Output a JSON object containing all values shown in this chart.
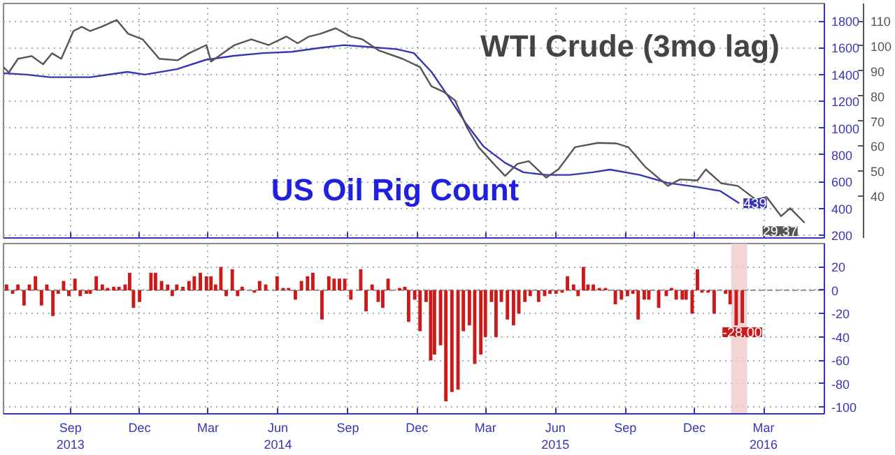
{
  "chart_data": [
    {
      "type": "line",
      "xlim": [
        "2013-06-05",
        "2016-05-20"
      ],
      "ylim": [
        179,
        1931
      ],
      "yticks": [
        200,
        400,
        600,
        800,
        1000,
        1200,
        1400,
        1600,
        1800
      ],
      "y2lim": [
        23.3,
        117
      ],
      "y2ticks": [
        40,
        50,
        60,
        70,
        80,
        90,
        100,
        110
      ],
      "xticks": [
        {
          "value": "2013-09-01",
          "label": null
        },
        {
          "value": "2013-12-01",
          "label": null
        },
        {
          "value": "2014-03-01",
          "label": null
        },
        {
          "value": "2014-06-01",
          "label": null
        },
        {
          "value": "2014-09-01",
          "label": null
        },
        {
          "value": "2014-12-01",
          "label": null
        },
        {
          "value": "2015-03-01",
          "label": null
        },
        {
          "value": "2015-06-01",
          "label": null
        },
        {
          "value": "2015-09-01",
          "label": null
        },
        {
          "value": "2015-12-01",
          "label": null
        },
        {
          "value": "2016-03-01",
          "label": null
        }
      ],
      "tick_labels": "y",
      "grid": true,
      "series": [
        {
          "name": "US Oil Rig Count",
          "color": "#3535b5",
          "x": [
            "2013-06-05",
            "2013-07-05",
            "2013-08-05",
            "2013-09-27",
            "2013-11-15",
            "2013-12-08",
            "2014-01-19",
            "2014-02-26",
            "2014-04-04",
            "2014-05-12",
            "2014-06-19",
            "2014-07-27",
            "2014-08-27",
            "2014-09-19",
            "2014-11-04",
            "2014-11-27",
            "2014-12-20",
            "2015-01-12",
            "2015-02-04",
            "2015-02-27",
            "2015-03-27",
            "2015-04-20",
            "2015-05-20",
            "2015-06-20",
            "2015-07-20",
            "2015-08-12",
            "2015-09-20",
            "2015-10-27",
            "2015-12-04",
            "2016-01-04",
            "2016-01-29"
          ],
          "values": [
            1410,
            1400,
            1380,
            1380,
            1420,
            1400,
            1440,
            1510,
            1540,
            1560,
            1570,
            1600,
            1620,
            1610,
            1590,
            1560,
            1420,
            1230,
            1030,
            860,
            740,
            670,
            650,
            650,
            670,
            690,
            650,
            590,
            560,
            530,
            439
          ],
          "value_labels": [
            null,
            null,
            null,
            null,
            null,
            null,
            null,
            null,
            null,
            null,
            null,
            null,
            null,
            null,
            null,
            null,
            null,
            null,
            null,
            null,
            null,
            null,
            null,
            null,
            null,
            null,
            null,
            null,
            null,
            null,
            "439"
          ]
        },
        {
          "name": "WTI Crude (3mo lag)",
          "color": "#555555",
          "axis": "y2",
          "x": [
            "2013-06-05",
            "2013-06-12",
            "2013-06-24",
            "2013-07-12",
            "2013-07-27",
            "2013-08-08",
            "2013-08-20",
            "2013-09-05",
            "2013-09-16",
            "2013-09-27",
            "2013-10-12",
            "2013-11-01",
            "2013-11-16",
            "2013-12-05",
            "2013-12-27",
            "2014-01-20",
            "2014-02-04",
            "2014-02-27",
            "2014-03-05",
            "2014-04-05",
            "2014-04-27",
            "2014-05-20",
            "2014-06-12",
            "2014-06-27",
            "2014-07-12",
            "2014-07-27",
            "2014-08-16",
            "2014-09-05",
            "2014-09-20",
            "2014-10-12",
            "2014-11-12",
            "2014-12-05",
            "2014-12-20",
            "2015-01-05",
            "2015-01-20",
            "2015-02-05",
            "2015-02-20",
            "2015-03-12",
            "2015-03-27",
            "2015-04-12",
            "2015-04-27",
            "2015-05-20",
            "2015-06-05",
            "2015-06-27",
            "2015-07-27",
            "2015-08-20",
            "2015-09-05",
            "2015-09-27",
            "2015-10-27",
            "2015-11-12",
            "2015-12-05",
            "2015-12-16",
            "2016-01-05",
            "2016-01-27",
            "2016-02-20",
            "2016-03-05",
            "2016-03-24",
            "2016-04-05",
            "2016-04-24"
          ],
          "values": [
            91.6,
            89.4,
            94.9,
            96.0,
            92.7,
            97.1,
            94.9,
            106.0,
            107.7,
            106.0,
            107.7,
            110.4,
            104.9,
            102.7,
            94.9,
            94.3,
            97.1,
            100.4,
            93.8,
            100.4,
            102.7,
            100.4,
            103.8,
            101.1,
            103.8,
            104.9,
            107.1,
            103.8,
            102.7,
            98.2,
            94.9,
            91.6,
            83.9,
            81.7,
            78.3,
            67.3,
            59.6,
            52.9,
            48.1,
            52.9,
            54.0,
            47.4,
            50.7,
            59.6,
            61.3,
            61.1,
            59.6,
            51.8,
            44.1,
            46.7,
            46.3,
            50.7,
            45.2,
            44.1,
            38.6,
            39.7,
            32.0,
            35.2,
            29.37
          ],
          "value_labels": [
            null,
            null,
            null,
            null,
            null,
            null,
            null,
            null,
            null,
            null,
            null,
            null,
            null,
            null,
            null,
            null,
            null,
            null,
            null,
            null,
            null,
            null,
            null,
            null,
            null,
            null,
            null,
            null,
            null,
            null,
            null,
            null,
            null,
            null,
            null,
            null,
            null,
            null,
            null,
            null,
            null,
            null,
            null,
            null,
            null,
            null,
            null,
            null,
            null,
            null,
            null,
            null,
            null,
            null,
            null,
            null,
            null,
            null,
            "29.37"
          ]
        }
      ]
    },
    {
      "type": "bar",
      "xlim": [
        "2013-06-05",
        "2016-05-20"
      ],
      "ylim": [
        -105.7,
        40
      ],
      "yticks": [
        -100,
        -80,
        -60,
        -40,
        -20,
        0,
        20
      ],
      "xticks": [
        {
          "value": "2013-09-01",
          "label": "Sep\n2013"
        },
        {
          "value": "2013-12-01",
          "label": "Dec"
        },
        {
          "value": "2014-03-01",
          "label": "Mar"
        },
        {
          "value": "2014-06-01",
          "label": "Jun\n2014"
        },
        {
          "value": "2014-09-01",
          "label": "Sep"
        },
        {
          "value": "2014-12-01",
          "label": "Dec"
        },
        {
          "value": "2015-03-01",
          "label": "Mar"
        },
        {
          "value": "2015-06-01",
          "label": "Jun\n2015"
        },
        {
          "value": "2015-09-01",
          "label": "Sep"
        },
        {
          "value": "2015-12-01",
          "label": "Dec"
        },
        {
          "value": "2016-03-01",
          "label": "Mar\n2016"
        }
      ],
      "grid": true,
      "color": "#cc1a1a",
      "ref_lines": [
        {
          "axis": "y",
          "value": 0,
          "color": "#999999",
          "line_style": "dashed"
        }
      ],
      "bands": [
        {
          "axis": "x",
          "from": "2016-01-19",
          "to": "2016-02-08",
          "color": "#f3c9cc"
        }
      ],
      "x": [
        "2013-06-09",
        "2013-06-17",
        "2013-06-24",
        "2013-07-02",
        "2013-07-09",
        "2013-07-17",
        "2013-07-25",
        "2013-08-01",
        "2013-08-09",
        "2013-08-16",
        "2013-08-23",
        "2013-08-30",
        "2013-09-07",
        "2013-09-14",
        "2013-09-22",
        "2013-09-27",
        "2013-10-05",
        "2013-10-13",
        "2013-10-20",
        "2013-10-28",
        "2013-11-04",
        "2013-11-12",
        "2013-11-18",
        "2013-11-23",
        "2013-12-01",
        "2013-12-16",
        "2013-12-22",
        "2013-12-30",
        "2014-01-07",
        "2014-01-13",
        "2014-01-19",
        "2014-01-27",
        "2014-02-04",
        "2014-02-11",
        "2014-02-19",
        "2014-02-27",
        "2014-03-05",
        "2014-03-11",
        "2014-03-18",
        "2014-03-25",
        "2014-04-02",
        "2014-04-09",
        "2014-04-15",
        "2014-05-01",
        "2014-05-08",
        "2014-05-16",
        "2014-05-31",
        "2014-06-08",
        "2014-06-15",
        "2014-06-24",
        "2014-07-02",
        "2014-07-10",
        "2014-07-17",
        "2014-07-29",
        "2014-08-07",
        "2014-08-14",
        "2014-08-21",
        "2014-08-28",
        "2014-09-05",
        "2014-09-18",
        "2014-09-25",
        "2014-10-03",
        "2014-10-11",
        "2014-10-17",
        "2014-10-24",
        "2014-11-08",
        "2014-11-15",
        "2014-11-20",
        "2014-11-28",
        "2014-12-05",
        "2014-12-13",
        "2014-12-19",
        "2014-12-24",
        "2015-01-01",
        "2015-01-08",
        "2015-01-16",
        "2015-01-24",
        "2015-01-31",
        "2015-02-08",
        "2015-02-15",
        "2015-02-23",
        "2015-03-01",
        "2015-03-09",
        "2015-03-15",
        "2015-03-22",
        "2015-03-30",
        "2015-04-07",
        "2015-04-14",
        "2015-04-22",
        "2015-04-29",
        "2015-05-10",
        "2015-05-18",
        "2015-05-25",
        "2015-06-02",
        "2015-06-10",
        "2015-06-17",
        "2015-06-25",
        "2015-07-01",
        "2015-07-08",
        "2015-07-14",
        "2015-07-21",
        "2015-07-29",
        "2015-08-06",
        "2015-08-19",
        "2015-08-27",
        "2015-09-04",
        "2015-09-11",
        "2015-09-18",
        "2015-09-26",
        "2015-10-02",
        "2015-10-15",
        "2015-10-25",
        "2015-11-01",
        "2015-11-07",
        "2015-11-15",
        "2015-11-20",
        "2015-11-28",
        "2015-12-05",
        "2015-12-11",
        "2015-12-19",
        "2015-12-27",
        "2016-01-11",
        "2016-01-17",
        "2016-01-25",
        "2016-02-02"
      ],
      "values": [
        5,
        -3,
        5,
        -13,
        5,
        12,
        -13,
        5,
        -22,
        -3,
        8,
        -5,
        10,
        -5,
        -3,
        -3,
        12,
        5,
        2,
        3,
        3,
        5,
        15,
        -15,
        -10,
        15,
        15,
        8,
        5,
        -5,
        5,
        3,
        8,
        12,
        15,
        12,
        12,
        5,
        20,
        -5,
        18,
        -5,
        3,
        -2,
        8,
        5,
        12,
        2,
        2,
        -8,
        8,
        12,
        15,
        -25,
        12,
        10,
        10,
        10,
        -8,
        18,
        -18,
        5,
        -10,
        -15,
        10,
        2,
        3,
        -27,
        -8,
        -35,
        -10,
        -60,
        -55,
        -47,
        -95,
        -87,
        -85,
        -35,
        -30,
        -63,
        -55,
        -40,
        -10,
        -40,
        -10,
        -25,
        -30,
        -20,
        -10,
        -5,
        -10,
        -5,
        -3,
        -3,
        -2,
        12,
        5,
        -5,
        20,
        5,
        5,
        2,
        2,
        -12,
        -8,
        -5,
        -3,
        -25,
        -8,
        -8,
        -15,
        -5,
        2,
        -8,
        -8,
        -8,
        -20,
        18,
        -2,
        -2,
        -20,
        -3,
        -12,
        -30,
        -28
      ],
      "value_labels": [
        null,
        null,
        null,
        null,
        null,
        null,
        null,
        null,
        null,
        null,
        null,
        null,
        null,
        null,
        null,
        null,
        null,
        null,
        null,
        null,
        null,
        null,
        null,
        null,
        null,
        null,
        null,
        null,
        null,
        null,
        null,
        null,
        null,
        null,
        null,
        null,
        null,
        null,
        null,
        null,
        null,
        null,
        null,
        null,
        null,
        null,
        null,
        null,
        null,
        null,
        null,
        null,
        null,
        null,
        null,
        null,
        null,
        null,
        null,
        null,
        null,
        null,
        null,
        null,
        null,
        null,
        null,
        null,
        null,
        null,
        null,
        null,
        null,
        null,
        null,
        null,
        null,
        null,
        null,
        null,
        null,
        null,
        null,
        null,
        null,
        null,
        null,
        null,
        null,
        null,
        null,
        null,
        null,
        null,
        null,
        null,
        null,
        null,
        null,
        null,
        null,
        null,
        null,
        null,
        null,
        null,
        null,
        null,
        null,
        null,
        null,
        null,
        null,
        null,
        null,
        null,
        null,
        null,
        null,
        null,
        null,
        null,
        null,
        null,
        "-28.00"
      ]
    }
  ]
}
